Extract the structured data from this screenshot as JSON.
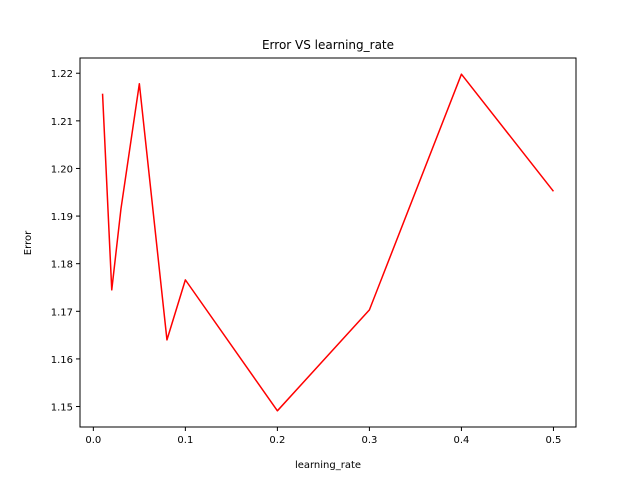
{
  "chart_data": {
    "type": "line",
    "title": "Error VS learning_rate",
    "xlabel": "learning_rate",
    "ylabel": "Error",
    "xlim": [
      -0.0145,
      0.5245
    ],
    "ylim": [
      1.1457,
      1.2232
    ],
    "xticks": [
      0.0,
      0.1,
      0.2,
      0.3,
      0.4,
      0.5
    ],
    "xtick_labels": [
      "0.0",
      "0.1",
      "0.2",
      "0.3",
      "0.4",
      "0.5"
    ],
    "yticks": [
      1.15,
      1.16,
      1.17,
      1.18,
      1.19,
      1.2,
      1.21,
      1.22
    ],
    "ytick_labels": [
      "1.15",
      "1.16",
      "1.17",
      "1.18",
      "1.19",
      "1.20",
      "1.21",
      "1.22"
    ],
    "grid": false,
    "series": [
      {
        "color": "#ff0000",
        "x": [
          0.01,
          0.02,
          0.03,
          0.05,
          0.08,
          0.1,
          0.2,
          0.3,
          0.4,
          0.5
        ],
        "y": [
          1.2157,
          1.1745,
          1.1915,
          1.2178,
          1.164,
          1.1766,
          1.1491,
          1.1703,
          1.2198,
          1.1952
        ]
      }
    ]
  }
}
